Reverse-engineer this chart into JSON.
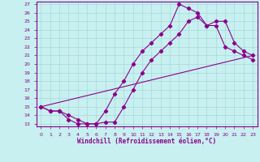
{
  "xlabel": "Windchill (Refroidissement éolien,°C)",
  "bg_color": "#c8f0f0",
  "grid_color": "#a8d8d8",
  "line_color": "#8b008b",
  "xlim": [
    -0.5,
    23.5
  ],
  "ylim": [
    12.7,
    27.3
  ],
  "yticks": [
    13,
    14,
    15,
    16,
    17,
    18,
    19,
    20,
    21,
    22,
    23,
    24,
    25,
    26,
    27
  ],
  "xticks": [
    0,
    1,
    2,
    3,
    4,
    5,
    6,
    7,
    8,
    9,
    10,
    11,
    12,
    13,
    14,
    15,
    16,
    17,
    18,
    19,
    20,
    21,
    22,
    23
  ],
  "line1_x": [
    0,
    1,
    2,
    3,
    4,
    5,
    6,
    7,
    8,
    9,
    10,
    11,
    12,
    13,
    14,
    15,
    16,
    17,
    18,
    19,
    20,
    21,
    22,
    23
  ],
  "line1_y": [
    15.0,
    14.5,
    14.5,
    14.0,
    13.5,
    13.0,
    13.0,
    13.2,
    13.2,
    15.0,
    17.0,
    19.0,
    20.5,
    21.5,
    22.5,
    23.5,
    25.0,
    25.5,
    24.5,
    25.0,
    25.0,
    22.5,
    21.5,
    21.0
  ],
  "line2_x": [
    0,
    1,
    2,
    3,
    4,
    5,
    6,
    7,
    8,
    9,
    10,
    11,
    12,
    13,
    14,
    15,
    16,
    17,
    18,
    19,
    20,
    21,
    22,
    23
  ],
  "line2_y": [
    15.0,
    14.5,
    14.5,
    13.5,
    13.0,
    13.0,
    13.0,
    14.5,
    16.5,
    18.0,
    20.0,
    21.5,
    22.5,
    23.5,
    24.5,
    27.0,
    26.5,
    26.0,
    24.5,
    24.5,
    22.0,
    21.5,
    21.0,
    20.5
  ],
  "line3_x": [
    0,
    23
  ],
  "line3_y": [
    15.0,
    21.0
  ]
}
